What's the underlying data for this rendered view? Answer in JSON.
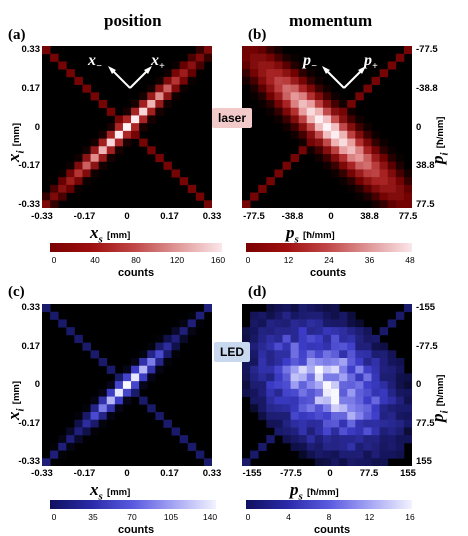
{
  "columns": {
    "left": "position",
    "right": "momentum"
  },
  "panels": [
    {
      "id": "a",
      "label": "(a)",
      "x_label_main": "x",
      "x_label_sub": "s",
      "x_label_unit": "[mm]",
      "y_label_main": "x",
      "y_label_sub": "i",
      "y_label_unit": "[mm]",
      "x_ticks": [
        "-0.33",
        "-0.17",
        "0",
        "0.17",
        "0.33"
      ],
      "y_ticks": [
        "0.33",
        "0.17",
        "0",
        "-0.17",
        "-0.33"
      ],
      "annot_minus_main": "x",
      "annot_minus_sub": "−",
      "annot_plus_main": "x",
      "annot_plus_sub": "+",
      "colorbar_ticks": [
        "0",
        "40",
        "80",
        "120",
        "160"
      ],
      "colorbar_label": "counts"
    },
    {
      "id": "b",
      "label": "(b)",
      "x_label_main": "p",
      "x_label_sub": "s",
      "x_label_unit": "[ħ/mm]",
      "y_label_main": "p",
      "y_label_sub": "i",
      "y_label_unit": "[ħ/mm]",
      "x_ticks": [
        "-77.5",
        "-38.8",
        "0",
        "38.8",
        "77.5"
      ],
      "y_ticks": [
        "-77.5",
        "-38.8",
        "0",
        "38.8",
        "77.5"
      ],
      "annot_minus_main": "p",
      "annot_minus_sub": "−",
      "annot_plus_main": "p",
      "annot_plus_sub": "+",
      "colorbar_ticks": [
        "0",
        "12",
        "24",
        "36",
        "48"
      ],
      "colorbar_label": "counts"
    },
    {
      "id": "c",
      "label": "(c)",
      "x_label_main": "x",
      "x_label_sub": "s",
      "x_label_unit": "[mm]",
      "y_label_main": "x",
      "y_label_sub": "i",
      "y_label_unit": "[mm]",
      "x_ticks": [
        "-0.33",
        "-0.17",
        "0",
        "0.17",
        "0.33"
      ],
      "y_ticks": [
        "0.33",
        "0.17",
        "0",
        "-0.17",
        "-0.33"
      ],
      "colorbar_ticks": [
        "0",
        "35",
        "70",
        "105",
        "140"
      ],
      "colorbar_label": "counts"
    },
    {
      "id": "d",
      "label": "(d)",
      "x_label_main": "p",
      "x_label_sub": "s",
      "x_label_unit": "[ħ/mm]",
      "y_label_main": "p",
      "y_label_sub": "i",
      "y_label_unit": "[ħ/mm]",
      "x_ticks": [
        "-155",
        "-77.5",
        "0",
        "77.5",
        "155"
      ],
      "y_ticks": [
        "-155",
        "-77.5",
        "0",
        "77.5",
        "155"
      ],
      "colorbar_ticks": [
        "0",
        "4",
        "8",
        "12",
        "16"
      ],
      "colorbar_label": "counts"
    }
  ],
  "badges": {
    "laser": "laser",
    "led": "LED"
  },
  "colors": {
    "laser_bg": "#f2caca",
    "led_bg": "#c8d8ee",
    "red_map_high": "#ffe8ea",
    "blue_map_high": "#f2f2ff"
  },
  "chart_data": [
    {
      "type": "heatmap",
      "panel": "a",
      "source": "laser",
      "cmap": "red",
      "description_of_pattern": "narrow diagonal ridge along x_s = x_i",
      "xlim": [
        -0.33,
        0.33
      ],
      "ylim": [
        -0.33,
        0.33
      ],
      "zlim": [
        0,
        160
      ]
    },
    {
      "type": "heatmap",
      "panel": "b",
      "source": "laser",
      "cmap": "red",
      "xlim": [
        -77.5,
        77.5
      ],
      "ylim": [
        -77.5,
        77.5
      ],
      "zlim": [
        0,
        48
      ]
    },
    {
      "type": "heatmap",
      "panel": "c",
      "source": "LED",
      "cmap": "blue",
      "xlim": [
        -0.33,
        0.33
      ],
      "ylim": [
        -0.33,
        0.33
      ],
      "zlim": [
        0,
        140
      ]
    },
    {
      "type": "heatmap",
      "panel": "d",
      "source": "LED",
      "cmap": "blue",
      "xlim": [
        -155,
        155
      ],
      "ylim": [
        -155,
        155
      ],
      "zlim": [
        0,
        16
      ]
    }
  ]
}
